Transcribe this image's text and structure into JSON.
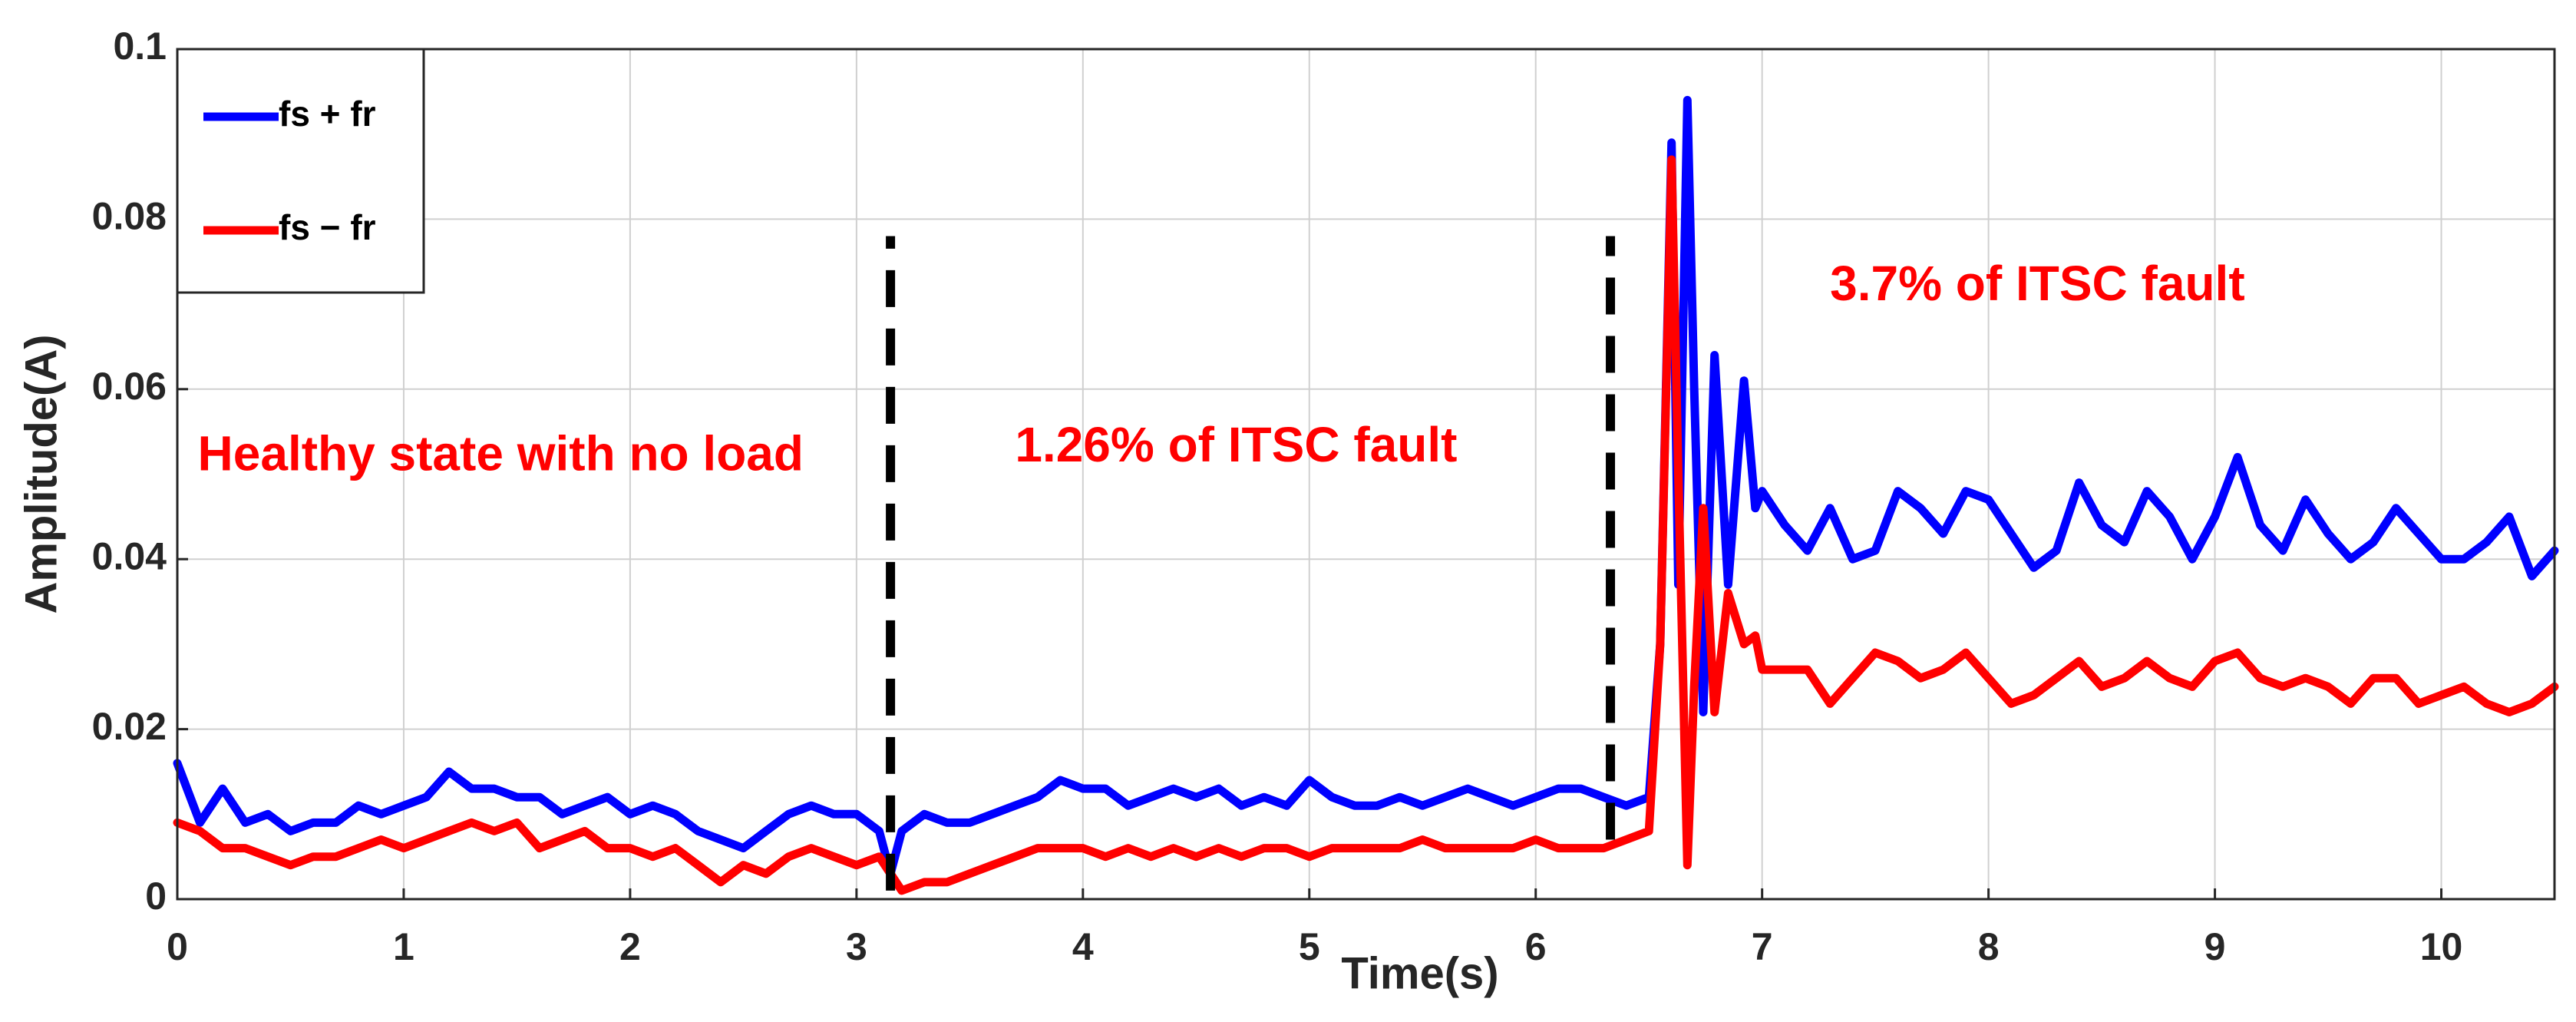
{
  "chart_data": {
    "type": "line",
    "xlabel": "Time(s)",
    "ylabel": "Amplitude(A)",
    "x": [
      0,
      0.1,
      0.2,
      0.3,
      0.4,
      0.5,
      0.6,
      0.7,
      0.8,
      0.9,
      1,
      1.1,
      1.2,
      1.3,
      1.4,
      1.5,
      1.6,
      1.7,
      1.8,
      1.9,
      2,
      2.1,
      2.2,
      2.3,
      2.4,
      2.5,
      2.6,
      2.7,
      2.8,
      2.9,
      3,
      3.1,
      3.15,
      3.2,
      3.3,
      3.4,
      3.5,
      3.6,
      3.7,
      3.8,
      3.9,
      4,
      4.1,
      4.2,
      4.3,
      4.4,
      4.5,
      4.6,
      4.7,
      4.8,
      4.9,
      5,
      5.1,
      5.2,
      5.3,
      5.4,
      5.5,
      5.6,
      5.7,
      5.8,
      5.9,
      6,
      6.1,
      6.2,
      6.3,
      6.4,
      6.5,
      6.55,
      6.6,
      6.63,
      6.67,
      6.7,
      6.74,
      6.79,
      6.85,
      6.92,
      6.97,
      7,
      7.1,
      7.2,
      7.3,
      7.4,
      7.5,
      7.6,
      7.7,
      7.8,
      7.9,
      8,
      8.1,
      8.2,
      8.3,
      8.4,
      8.5,
      8.6,
      8.7,
      8.8,
      8.9,
      9,
      9.1,
      9.2,
      9.3,
      9.4,
      9.5,
      9.6,
      9.7,
      9.8,
      9.9,
      10,
      10.1,
      10.2,
      10.3,
      10.4,
      10.5
    ],
    "series": [
      {
        "name": "fs + fr",
        "color": "#0000ff",
        "values": [
          0.016,
          0.009,
          0.013,
          0.009,
          0.01,
          0.008,
          0.009,
          0.009,
          0.011,
          0.01,
          0.011,
          0.012,
          0.015,
          0.013,
          0.013,
          0.012,
          0.012,
          0.01,
          0.011,
          0.012,
          0.01,
          0.011,
          0.01,
          0.008,
          0.007,
          0.006,
          0.008,
          0.01,
          0.011,
          0.01,
          0.01,
          0.008,
          0.003,
          0.008,
          0.01,
          0.009,
          0.009,
          0.01,
          0.011,
          0.012,
          0.014,
          0.013,
          0.013,
          0.011,
          0.012,
          0.013,
          0.012,
          0.013,
          0.011,
          0.012,
          0.011,
          0.014,
          0.012,
          0.011,
          0.011,
          0.012,
          0.011,
          0.012,
          0.013,
          0.012,
          0.011,
          0.012,
          0.013,
          0.013,
          0.012,
          0.011,
          0.012,
          0.03,
          0.089,
          0.037,
          0.094,
          0.06,
          0.022,
          0.064,
          0.037,
          0.061,
          0.046,
          0.048,
          0.044,
          0.041,
          0.046,
          0.04,
          0.041,
          0.048,
          0.046,
          0.043,
          0.048,
          0.047,
          0.043,
          0.039,
          0.041,
          0.049,
          0.044,
          0.042,
          0.048,
          0.045,
          0.04,
          0.045,
          0.052,
          0.044,
          0.041,
          0.047,
          0.043,
          0.04,
          0.042,
          0.046,
          0.043,
          0.04,
          0.04,
          0.042,
          0.045,
          0.038,
          0.041
        ]
      },
      {
        "name": "fs − fr",
        "color": "#ff0000",
        "values": [
          0.009,
          0.008,
          0.006,
          0.006,
          0.005,
          0.004,
          0.005,
          0.005,
          0.006,
          0.007,
          0.006,
          0.007,
          0.008,
          0.009,
          0.008,
          0.009,
          0.006,
          0.007,
          0.008,
          0.006,
          0.006,
          0.005,
          0.006,
          0.004,
          0.002,
          0.004,
          0.003,
          0.005,
          0.006,
          0.005,
          0.004,
          0.005,
          0.003,
          0.001,
          0.002,
          0.002,
          0.003,
          0.004,
          0.005,
          0.006,
          0.006,
          0.006,
          0.005,
          0.006,
          0.005,
          0.006,
          0.005,
          0.006,
          0.005,
          0.006,
          0.006,
          0.005,
          0.006,
          0.006,
          0.006,
          0.006,
          0.007,
          0.006,
          0.006,
          0.006,
          0.006,
          0.007,
          0.006,
          0.006,
          0.006,
          0.007,
          0.008,
          0.03,
          0.087,
          0.05,
          0.004,
          0.025,
          0.046,
          0.022,
          0.036,
          0.03,
          0.031,
          0.027,
          0.027,
          0.027,
          0.023,
          0.026,
          0.029,
          0.028,
          0.026,
          0.027,
          0.029,
          0.026,
          0.023,
          0.024,
          0.026,
          0.028,
          0.025,
          0.026,
          0.028,
          0.026,
          0.025,
          0.028,
          0.029,
          0.026,
          0.025,
          0.026,
          0.025,
          0.023,
          0.026,
          0.026,
          0.023,
          0.024,
          0.025,
          0.023,
          0.022,
          0.023,
          0.025
        ]
      }
    ],
    "xlim": [
      0,
      10.5
    ],
    "ylim": [
      0,
      0.1
    ],
    "xticks": [
      0,
      1,
      2,
      3,
      4,
      5,
      6,
      7,
      8,
      9,
      10
    ],
    "yticks": [
      0,
      0.02,
      0.04,
      0.06,
      0.08,
      0.1
    ],
    "grid": true,
    "legend": "upper left",
    "vlines": [
      {
        "x": 3.15,
        "y": [
          0.001,
          0.078
        ]
      },
      {
        "x": 6.33,
        "y": [
          0.007,
          0.078
        ]
      }
    ],
    "annotations": [
      "Healthy state with no load",
      "1.26% of ITSC fault",
      "3.7% of ITSC fault"
    ]
  }
}
